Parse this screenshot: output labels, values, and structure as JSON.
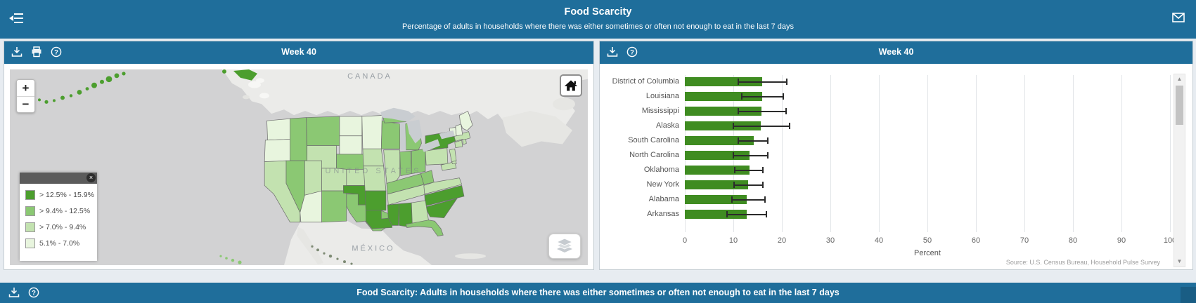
{
  "app": {
    "header": {
      "title": "Food Scarcity",
      "subtitle": "Percentage of adults in households where there was either sometimes or often not enough to eat in the last 7 days"
    },
    "footer": {
      "title": "Food Scarcity: Adults in households where there was either sometimes or often not enough to eat in the last 7 days"
    },
    "colors": {
      "header_bg": "#1f6e9b",
      "bar_green": "#3f8c21",
      "page_bg": "#e7ecf1",
      "ocean": "#d2d2d3"
    }
  },
  "icons": {
    "header_left": "collapse-menu",
    "header_right": "envelope",
    "map_tools": [
      "download",
      "print",
      "help"
    ],
    "chart_tools": [
      "download",
      "help"
    ],
    "footer_tools": [
      "download",
      "help"
    ],
    "map_controls": [
      "zoom-in",
      "zoom-out",
      "home",
      "layers",
      "legend-close"
    ]
  },
  "map_panel": {
    "title": "Week 40",
    "controls": {
      "zoom_in": "+",
      "zoom_out": "−",
      "legend_close": "×"
    },
    "labels": {
      "canada": "CANADA",
      "united_states": "UNITED STATES",
      "mexico": "MÉXICO"
    },
    "legend": [
      {
        "label": "> 12.5% - 15.9%",
        "color": "#4c9e2e"
      },
      {
        "label": "> 9.4% - 12.5%",
        "color": "#8bc873"
      },
      {
        "label": "> 7.0% - 9.4%",
        "color": "#c3e2b0"
      },
      {
        "label": "5.1% - 7.0%",
        "color": "#e8f5de"
      }
    ],
    "state_classes": {
      "WA": 3,
      "OR": 3,
      "CA": 2,
      "NV": 1,
      "ID": 1,
      "MT": 1,
      "WY": 2,
      "UT": 2,
      "AZ": 3,
      "CO": 2,
      "NM": 1,
      "ND": 3,
      "SD": 3,
      "NE": 1,
      "KS": 2,
      "OK": 0,
      "TX": 1,
      "MN": 3,
      "IA": 2,
      "MO": 2,
      "AR": 0,
      "LA": 0,
      "WI": 1,
      "IL": 2,
      "MS": 0,
      "AL": 0,
      "TN": 2,
      "KY": 1,
      "IN": 1,
      "OH": 1,
      "MI": 1,
      "PA": 2,
      "NY": 0,
      "WV": 1,
      "VA": 2,
      "NC": 0,
      "SC": 0,
      "GA": 2,
      "FL": 1,
      "ME": 3,
      "VT": 3,
      "NH": 3,
      "MA": 2,
      "CT": 2,
      "RI": 2,
      "NJ": 2,
      "MD": 2,
      "DE": 2,
      "AK": 0,
      "HI": 1
    }
  },
  "chart_panel": {
    "title": "Week 40",
    "source": "Source: U.S. Census Bureau, Household Pulse Survey"
  },
  "chart_data": {
    "type": "bar",
    "orientation": "horizontal",
    "title": "Week 40",
    "xlabel": "Percent",
    "xlim": [
      0,
      100
    ],
    "xticks": [
      0,
      10,
      20,
      30,
      40,
      50,
      60,
      70,
      80,
      90,
      100
    ],
    "grid": true,
    "bar_color": "#3f8c21",
    "categories": [
      "District of Columbia",
      "Louisiana",
      "Mississippi",
      "Alaska",
      "South Carolina",
      "North Carolina",
      "Oklahoma",
      "New York",
      "Alabama",
      "Arkansas"
    ],
    "values": [
      15.9,
      15.9,
      15.8,
      15.6,
      14.2,
      13.3,
      13.3,
      13.1,
      12.8,
      12.8
    ],
    "error_low": [
      10.9,
      11.6,
      10.9,
      9.9,
      10.9,
      9.8,
      10.2,
      10.0,
      9.5,
      8.6
    ],
    "error_high": [
      21.1,
      20.4,
      21.0,
      21.7,
      17.3,
      17.3,
      16.3,
      16.2,
      16.6,
      17.0
    ]
  }
}
